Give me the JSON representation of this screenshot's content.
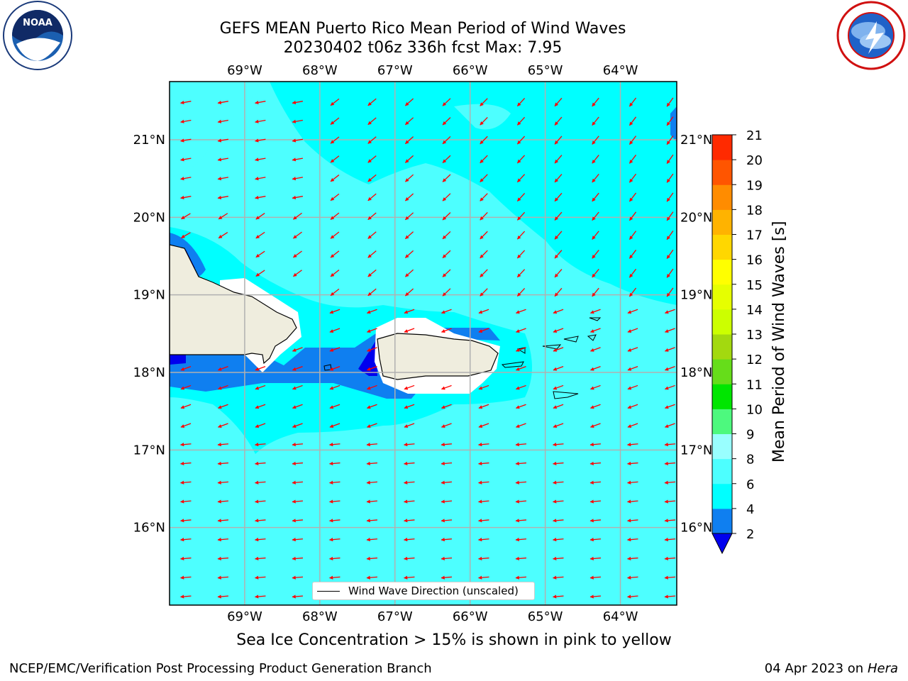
{
  "header": {
    "title_line1": "GEFS MEAN Puerto Rico Mean Period of Wind Waves",
    "title_line2": "20230402 t06z 336h fcst   Max: 7.95"
  },
  "logos": {
    "left": "noaa-logo",
    "right": "nws-logo",
    "noaa_text": "NOAA"
  },
  "map": {
    "lon_labels": [
      "69°W",
      "68°W",
      "67°W",
      "66°W",
      "65°W",
      "64°W"
    ],
    "lat_labels": [
      "21°N",
      "20°N",
      "19°N",
      "18°N",
      "17°N",
      "16°N"
    ],
    "lon_values": [
      -69,
      -68,
      -67,
      -66,
      -65,
      -64
    ],
    "lat_values": [
      21,
      20,
      19,
      18,
      17,
      16
    ],
    "extent": {
      "lon": [
        -70,
        -63.25
      ],
      "lat": [
        15,
        21.75
      ]
    },
    "arrow_color": "#ff0000",
    "land_color": "#efedde"
  },
  "legend": {
    "label": "Wind Wave Direction (unscaled)"
  },
  "colorbar": {
    "label": "Mean Period of Wind Waves [s]",
    "ticks": [
      "2",
      "4",
      "6",
      "8",
      "9",
      "10",
      "11",
      "12",
      "13",
      "14",
      "15",
      "16",
      "17",
      "18",
      "19",
      "20",
      "21"
    ],
    "colors": [
      "#0f7ff0",
      "#00ffff",
      "#4dffff",
      "#99ffff",
      "#4df97e",
      "#00e600",
      "#66dd1a",
      "#a3d90f",
      "#ccff00",
      "#e6ff00",
      "#ffff00",
      "#ffd700",
      "#ffb300",
      "#ff8c00",
      "#ff5500",
      "#ff2a00"
    ],
    "under_color": "#0000ee"
  },
  "caption": "Sea Ice Concentration > 15% is shown in pink to yellow",
  "footer": {
    "left": "NCEP/EMC/Verification Post Processing Product Generation Branch",
    "right_prefix": "04 Apr 2023 on",
    "right_host": "Hera"
  }
}
